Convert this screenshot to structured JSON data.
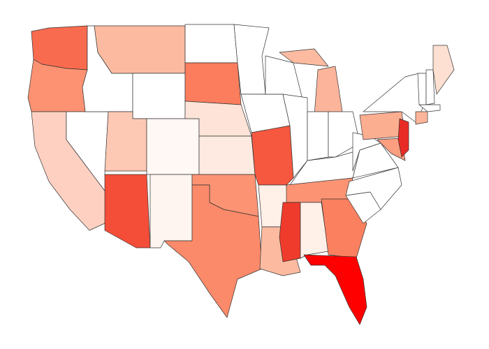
{
  "map": {
    "regions": [
      {
        "color": "#f96b4f"
      },
      {
        "color": "#fc9272"
      },
      {
        "color": "#fdd0c2"
      },
      {
        "color": "#ffffff"
      },
      {
        "color": "#ffffff"
      },
      {
        "color": "#fcbba1"
      },
      {
        "color": "#ffffff"
      },
      {
        "color": "#fdc9b4"
      },
      {
        "color": "#fff8f4"
      },
      {
        "color": "#f44d38"
      },
      {
        "color": "#fff5f0"
      },
      {
        "color": "#ffffff"
      },
      {
        "color": "#fb7d5d"
      },
      {
        "color": "#fee4d8"
      },
      {
        "color": "#feeae1"
      },
      {
        "color": "#fc9474"
      },
      {
        "color": "#fb8a6a"
      },
      {
        "color": "#ffffff"
      },
      {
        "color": "#ffffff"
      },
      {
        "color": "#f6583f"
      },
      {
        "color": "#fff0e8"
      },
      {
        "color": "#fcbba1"
      },
      {
        "color": "#ffffff"
      },
      {
        "color": "#ffffff"
      },
      {
        "color": "#fcbba1"
      },
      {
        "color": "#fcb49a"
      },
      {
        "color": "#ffffff"
      },
      {
        "color": "#ffffff"
      },
      {
        "color": "#ffffff"
      },
      {
        "color": "#fc9474"
      },
      {
        "color": "#ef3b2c"
      },
      {
        "color": "#fff0e8"
      },
      {
        "color": "#fb8060"
      },
      {
        "color": "#ff0000"
      },
      {
        "color": "#ffffff"
      },
      {
        "color": "#ffffff"
      },
      {
        "color": "#ffffff"
      },
      {
        "color": "#ffffff"
      },
      {
        "color": "#fcae91"
      },
      {
        "color": "#fc9e80"
      },
      {
        "color": "#e82c25"
      },
      {
        "color": "#ffffff"
      },
      {
        "color": "#fcb499"
      },
      {
        "color": "#ffffff"
      },
      {
        "color": "#ffffff"
      },
      {
        "color": "#ffffff"
      },
      {
        "color": "#fee0d2"
      }
    ]
  }
}
